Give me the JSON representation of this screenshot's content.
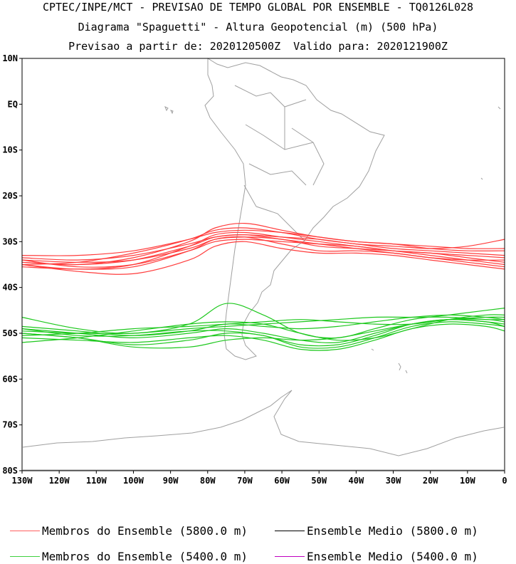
{
  "title": {
    "line1": "CPTEC/INPE/MCT - PREVISAO DE TEMPO GLOBAL POR ENSEMBLE - TQ0126L028",
    "line2": "Diagrama \"Spaguetti\" - Altura Geopotencial (m) (500 hPa)",
    "line3": "Previsao a partir de: 2020120500Z  Valido para: 2020121900Z"
  },
  "map": {
    "lon_range": [
      -130,
      0
    ],
    "lat_range": [
      -80,
      10
    ],
    "lat_ticks": [
      {
        "v": 10,
        "label": "10N"
      },
      {
        "v": 0,
        "label": "EQ"
      },
      {
        "v": -10,
        "label": "10S"
      },
      {
        "v": -20,
        "label": "20S"
      },
      {
        "v": -30,
        "label": "30S"
      },
      {
        "v": -40,
        "label": "40S"
      },
      {
        "v": -50,
        "label": "50S"
      },
      {
        "v": -60,
        "label": "60S"
      },
      {
        "v": -70,
        "label": "70S"
      },
      {
        "v": -80,
        "label": "80S"
      }
    ],
    "lon_ticks": [
      {
        "v": -130,
        "label": "130W"
      },
      {
        "v": -120,
        "label": "120W"
      },
      {
        "v": -110,
        "label": "110W"
      },
      {
        "v": -100,
        "label": "100W"
      },
      {
        "v": -90,
        "label": "90W"
      },
      {
        "v": -80,
        "label": "80W"
      },
      {
        "v": -70,
        "label": "70W"
      },
      {
        "v": -60,
        "label": "60W"
      },
      {
        "v": -50,
        "label": "50W"
      },
      {
        "v": -40,
        "label": "40W"
      },
      {
        "v": -30,
        "label": "30W"
      },
      {
        "v": -20,
        "label": "20W"
      },
      {
        "v": -10,
        "label": "10W"
      },
      {
        "v": 0,
        "label": "0"
      }
    ],
    "colors": {
      "red_members": "#ff3c3c",
      "green_members": "#1ec81e",
      "coast": "#a0a0a0"
    }
  },
  "chart_data": {
    "type": "line",
    "x_units": "longitude (deg)",
    "y_units": "latitude (deg)",
    "series": [
      {
        "name": "Membros do Ensemble (5800.0 m)",
        "color": "#ff3c3c",
        "members": [
          {
            "x": [
              -130,
              -115,
              -100,
              -85,
              -78,
              -70,
              -60,
              -50,
              -40,
              -30,
              -20,
              -10,
              0
            ],
            "y": [
              -34.5,
              -35,
              -34,
              -31,
              -29,
              -28.5,
              -29.5,
              -30.5,
              -31.5,
              -32.5,
              -33.5,
              -34.5,
              -35.5
            ]
          },
          {
            "x": [
              -130,
              -115,
              -100,
              -85,
              -78,
              -70,
              -60,
              -50,
              -40,
              -30,
              -20,
              -10,
              0
            ],
            "y": [
              -33,
              -33,
              -32,
              -29.5,
              -28,
              -27.5,
              -28,
              -29,
              -30,
              -30.5,
              -31,
              -31.5,
              -31.5
            ]
          },
          {
            "x": [
              -130,
              -115,
              -100,
              -85,
              -78,
              -70,
              -60,
              -50,
              -40,
              -30,
              -20,
              -10,
              0
            ],
            "y": [
              -35,
              -36,
              -35,
              -31,
              -28.5,
              -28,
              -29,
              -30,
              -31,
              -32,
              -32.5,
              -33,
              -33.5
            ]
          },
          {
            "x": [
              -130,
              -115,
              -100,
              -85,
              -78,
              -70,
              -60,
              -50,
              -40,
              -30,
              -20,
              -10,
              0
            ],
            "y": [
              -34,
              -35.5,
              -35,
              -32,
              -30,
              -29.5,
              -30,
              -30.5,
              -31,
              -32,
              -33,
              -34,
              -35
            ]
          },
          {
            "x": [
              -130,
              -115,
              -100,
              -85,
              -78,
              -70,
              -60,
              -50,
              -40,
              -30,
              -20,
              -10,
              0
            ],
            "y": [
              -35,
              -36.5,
              -37,
              -34,
              -31,
              -30,
              -31.5,
              -32.5,
              -32.5,
              -33,
              -34,
              -35,
              -36
            ]
          },
          {
            "x": [
              -130,
              -115,
              -100,
              -85,
              -78,
              -70,
              -60,
              -50,
              -40,
              -30,
              -20,
              -10,
              0
            ],
            "y": [
              -34.5,
              -35,
              -33.5,
              -30,
              -27,
              -26,
              -27.5,
              -29,
              -30,
              -30.5,
              -31.5,
              -32,
              -32
            ]
          },
          {
            "x": [
              -130,
              -115,
              -100,
              -85,
              -78,
              -70,
              -60,
              -50,
              -40,
              -30,
              -20,
              -10,
              0
            ],
            "y": [
              -35,
              -34.5,
              -32.5,
              -29.5,
              -27.5,
              -27,
              -28,
              -29.5,
              -30.5,
              -31.5,
              -32,
              -32.5,
              -33
            ]
          },
          {
            "x": [
              -130,
              -115,
              -100,
              -85,
              -78,
              -70,
              -60,
              -50,
              -40,
              -30,
              -20,
              -10,
              0
            ],
            "y": [
              -33.5,
              -34,
              -33,
              -30.5,
              -29,
              -28.5,
              -29,
              -29.5,
              -30.5,
              -31,
              -31.5,
              -31,
              -29.5
            ]
          },
          {
            "x": [
              -130,
              -115,
              -100,
              -85,
              -78,
              -70,
              -60,
              -50,
              -40,
              -30,
              -20,
              -10,
              0
            ],
            "y": [
              -35.5,
              -36,
              -35.5,
              -32,
              -29.5,
              -29,
              -30.5,
              -32,
              -32,
              -32.5,
              -33.5,
              -34,
              -34
            ]
          },
          {
            "x": [
              -130,
              -115,
              -100,
              -85,
              -78,
              -70,
              -60,
              -50,
              -40,
              -30,
              -20,
              -10,
              0
            ],
            "y": [
              -34,
              -34.5,
              -34,
              -31.5,
              -29.5,
              -29,
              -29.5,
              -31,
              -31.5,
              -32,
              -32.5,
              -33.5,
              -34.5
            ]
          }
        ]
      },
      {
        "name": "Membros do Ensemble (5400.0 m)",
        "color": "#1ec81e",
        "members": [
          {
            "x": [
              -130,
              -115,
              -100,
              -85,
              -75,
              -65,
              -55,
              -45,
              -35,
              -25,
              -15,
              -5,
              0
            ],
            "y": [
              -46.5,
              -49,
              -50,
              -48,
              -43.5,
              -46,
              -50,
              -51,
              -49,
              -47,
              -46,
              -45,
              -44.5
            ]
          },
          {
            "x": [
              -130,
              -115,
              -100,
              -85,
              -75,
              -65,
              -55,
              -45,
              -35,
              -25,
              -15,
              -5,
              0
            ],
            "y": [
              -49,
              -50,
              -51,
              -50,
              -49,
              -50,
              -51.5,
              -52,
              -50,
              -48,
              -47,
              -47.5,
              -48
            ]
          },
          {
            "x": [
              -130,
              -115,
              -100,
              -85,
              -75,
              -65,
              -55,
              -45,
              -35,
              -25,
              -15,
              -5,
              0
            ],
            "y": [
              -50,
              -51,
              -52.5,
              -51.5,
              -50,
              -50.5,
              -53,
              -53,
              -51,
              -48.5,
              -47.5,
              -48,
              -48.5
            ]
          },
          {
            "x": [
              -130,
              -115,
              -100,
              -85,
              -75,
              -65,
              -55,
              -45,
              -35,
              -25,
              -15,
              -5,
              0
            ],
            "y": [
              -48.5,
              -49.5,
              -50.5,
              -49.5,
              -48,
              -48.5,
              -49,
              -48.5,
              -47.5,
              -46.5,
              -46,
              -46.5,
              -47
            ]
          },
          {
            "x": [
              -130,
              -115,
              -100,
              -85,
              -75,
              -65,
              -55,
              -45,
              -35,
              -25,
              -15,
              -5,
              0
            ],
            "y": [
              -51,
              -51.5,
              -52,
              -51,
              -50.5,
              -51.5,
              -53.5,
              -53.5,
              -51.5,
              -49,
              -48,
              -48.5,
              -49.5
            ]
          },
          {
            "x": [
              -130,
              -115,
              -100,
              -85,
              -75,
              -65,
              -55,
              -45,
              -35,
              -25,
              -15,
              -5,
              0
            ],
            "y": [
              -49.5,
              -50,
              -50,
              -49,
              -48.5,
              -48,
              -47.5,
              -47,
              -46.5,
              -46.5,
              -46.5,
              -47,
              -47
            ]
          },
          {
            "x": [
              -130,
              -115,
              -100,
              -85,
              -75,
              -65,
              -55,
              -45,
              -35,
              -25,
              -15,
              -5,
              0
            ],
            "y": [
              -52,
              -51,
              -49.5,
              -48,
              -47.5,
              -48,
              -50,
              -51.5,
              -51,
              -49,
              -47,
              -46,
              -46
            ]
          },
          {
            "x": [
              -130,
              -115,
              -100,
              -85,
              -75,
              -65,
              -55,
              -45,
              -35,
              -25,
              -15,
              -5,
              0
            ],
            "y": [
              -50,
              -51,
              -53,
              -53,
              -51.5,
              -51,
              -51.5,
              -51,
              -49.5,
              -48,
              -47,
              -47,
              -47.5
            ]
          },
          {
            "x": [
              -130,
              -115,
              -100,
              -85,
              -75,
              -65,
              -55,
              -45,
              -35,
              -25,
              -15,
              -5,
              0
            ],
            "y": [
              -49,
              -50.5,
              -50.5,
              -49.5,
              -49.5,
              -50.5,
              -52.5,
              -52.5,
              -50.5,
              -48,
              -47,
              -47.5,
              -48.5
            ]
          },
          {
            "x": [
              -130,
              -115,
              -100,
              -85,
              -75,
              -65,
              -55,
              -45,
              -35,
              -25,
              -15,
              -5,
              0
            ],
            "y": [
              -50.5,
              -50,
              -49,
              -48.5,
              -48,
              -47.5,
              -47,
              -47.5,
              -48,
              -48,
              -47,
              -46.5,
              -46.5
            ]
          }
        ]
      }
    ],
    "legend": [
      {
        "label": "Membros do Ensemble (5800.0 m)",
        "color": "#ff6060",
        "key": "red"
      },
      {
        "label": "Ensemble Medio (5800.0 m)",
        "color": "#000000",
        "key": "black"
      },
      {
        "label": "Membros do Ensemble (5400.0 m)",
        "color": "#40d040",
        "key": "green"
      },
      {
        "label": "Ensemble Medio (5400.0 m)",
        "color": "#c000c0",
        "key": "magenta"
      }
    ]
  }
}
